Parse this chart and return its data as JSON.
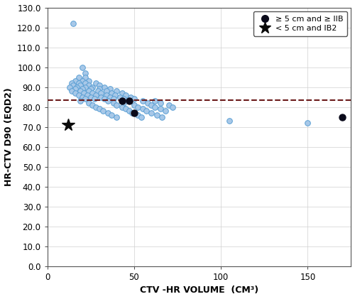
{
  "title": "",
  "xlabel": "CTV -HR VOLUME  (CM³)",
  "ylabel": "HR-CTV D90 (EQD2)",
  "xlim": [
    0,
    175
  ],
  "ylim": [
    0.0,
    130.0
  ],
  "yticks": [
    0.0,
    10.0,
    20.0,
    30.0,
    40.0,
    50.0,
    60.0,
    70.0,
    80.0,
    90.0,
    100.0,
    110.0,
    120.0,
    130.0
  ],
  "xticks": [
    0,
    50,
    100,
    150
  ],
  "dashed_line_y": 83.5,
  "dashed_line_color": "#6b1a1a",
  "open_circle_facecolor": "#a8c8e8",
  "open_circle_edgecolor": "#5a9fd4",
  "filled_circle_color": "#0a0a1a",
  "star_color": "#0a0a0a",
  "legend_dot_label": "≥ 5 cm and ≥ IIB",
  "legend_star_label": "< 5 cm and IB2",
  "open_circles": [
    [
      15,
      122
    ],
    [
      20,
      100
    ],
    [
      22,
      97
    ],
    [
      18,
      95
    ],
    [
      22,
      95
    ],
    [
      16,
      93
    ],
    [
      20,
      93
    ],
    [
      24,
      93
    ],
    [
      14,
      92
    ],
    [
      18,
      92
    ],
    [
      22,
      92
    ],
    [
      28,
      92
    ],
    [
      15,
      91
    ],
    [
      19,
      91
    ],
    [
      24,
      91
    ],
    [
      30,
      91
    ],
    [
      13,
      90
    ],
    [
      17,
      90
    ],
    [
      22,
      90
    ],
    [
      26,
      90
    ],
    [
      33,
      90
    ],
    [
      16,
      89
    ],
    [
      20,
      89
    ],
    [
      25,
      89
    ],
    [
      30,
      89
    ],
    [
      36,
      89
    ],
    [
      14,
      88
    ],
    [
      19,
      88
    ],
    [
      24,
      88
    ],
    [
      29,
      88
    ],
    [
      34,
      88
    ],
    [
      40,
      88
    ],
    [
      16,
      87
    ],
    [
      21,
      87
    ],
    [
      26,
      87
    ],
    [
      31,
      87
    ],
    [
      37,
      87
    ],
    [
      43,
      87
    ],
    [
      18,
      86
    ],
    [
      23,
      86
    ],
    [
      28,
      86
    ],
    [
      34,
      86
    ],
    [
      39,
      86
    ],
    [
      45,
      86
    ],
    [
      20,
      85
    ],
    [
      25,
      85
    ],
    [
      31,
      85
    ],
    [
      36,
      85
    ],
    [
      42,
      85
    ],
    [
      48,
      85
    ],
    [
      22,
      84
    ],
    [
      27,
      84
    ],
    [
      33,
      84
    ],
    [
      38,
      84
    ],
    [
      44,
      84
    ],
    [
      50,
      84
    ],
    [
      19,
      83
    ],
    [
      35,
      83
    ],
    [
      55,
      83
    ],
    [
      62,
      83
    ],
    [
      24,
      82
    ],
    [
      38,
      82
    ],
    [
      44,
      82
    ],
    [
      58,
      82
    ],
    [
      65,
      82
    ],
    [
      26,
      81
    ],
    [
      40,
      81
    ],
    [
      50,
      81
    ],
    [
      60,
      81
    ],
    [
      70,
      81
    ],
    [
      28,
      80
    ],
    [
      43,
      80
    ],
    [
      52,
      80
    ],
    [
      62,
      80
    ],
    [
      72,
      80
    ],
    [
      30,
      79
    ],
    [
      45,
      79
    ],
    [
      55,
      79
    ],
    [
      65,
      79
    ],
    [
      32,
      78
    ],
    [
      47,
      78
    ],
    [
      57,
      78
    ],
    [
      68,
      78
    ],
    [
      35,
      77
    ],
    [
      49,
      77
    ],
    [
      60,
      77
    ],
    [
      37,
      76
    ],
    [
      52,
      76
    ],
    [
      63,
      76
    ],
    [
      40,
      75
    ],
    [
      54,
      75
    ],
    [
      66,
      75
    ],
    [
      105,
      73
    ],
    [
      150,
      72
    ]
  ],
  "filled_circles": [
    [
      43,
      83
    ],
    [
      47,
      83
    ],
    [
      50,
      77
    ],
    [
      170,
      75
    ]
  ],
  "stars": [
    [
      12,
      71
    ]
  ]
}
